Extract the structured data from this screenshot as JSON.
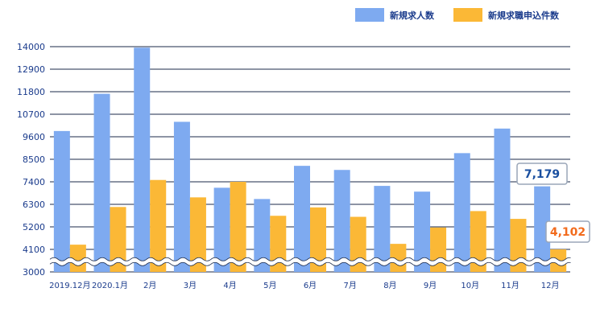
{
  "chart_data": {
    "type": "bar",
    "categories": [
      "2019.12月",
      "2020.1月",
      "2月",
      "3月",
      "4月",
      "5月",
      "6月",
      "7月",
      "8月",
      "9月",
      "10月",
      "11月",
      "12月"
    ],
    "series": [
      {
        "name": "新規求人数",
        "color": "#7eaaf0",
        "values": [
          9880,
          11700,
          13950,
          10330,
          7110,
          6560,
          8180,
          7980,
          7200,
          6920,
          8800,
          10000,
          7179
        ]
      },
      {
        "name": "新規求職申込件数",
        "color": "#fbb836",
        "values": [
          4330,
          6170,
          7490,
          6640,
          7400,
          5740,
          6150,
          5690,
          4370,
          5170,
          5970,
          5590,
          4102
        ]
      }
    ],
    "yticks": [
      "14000",
      "12900",
      "11800",
      "10700",
      "9600",
      "8500",
      "7400",
      "6300",
      "5200",
      "4100",
      "3000"
    ],
    "ylim": [
      3000,
      14000
    ],
    "axis_break": true,
    "grid": true,
    "legend_position": "top-right",
    "callouts": [
      {
        "text": "7,179",
        "color": "#1a4fa0"
      },
      {
        "text": "4,102",
        "color": "#f26b1d"
      }
    ]
  }
}
